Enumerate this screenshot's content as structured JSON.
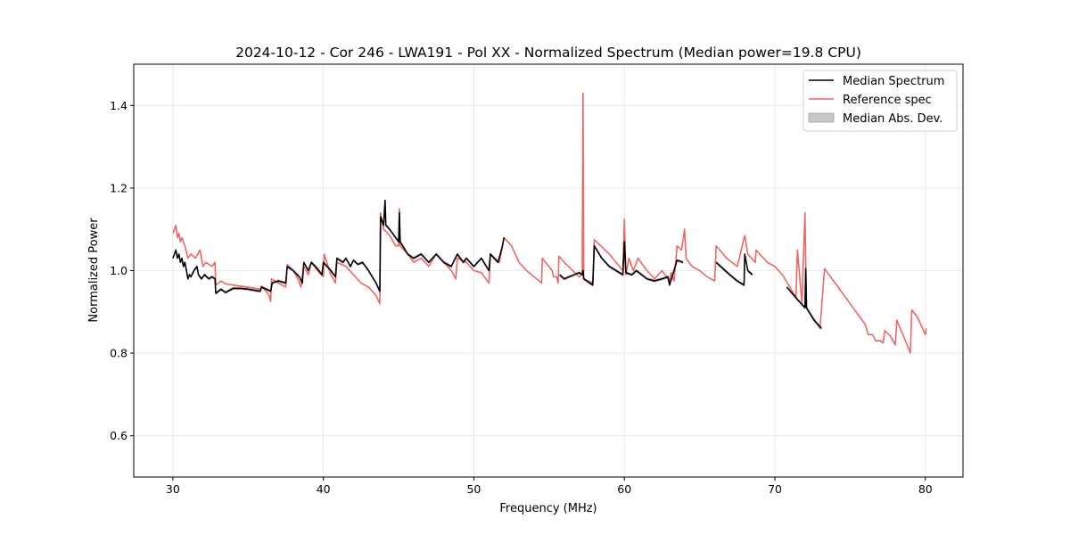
{
  "chart_data": {
    "type": "line",
    "title": "2024-10-12 - Cor 246 - LWA191 - Pol XX - Normalized Spectrum (Median power=19.8 CPU)",
    "xlabel": "Frequency (MHz)",
    "ylabel": "Normalized Power",
    "xlim": [
      27.4,
      82.5
    ],
    "ylim": [
      0.5,
      1.5
    ],
    "xticks": [
      30,
      40,
      50,
      60,
      70,
      80
    ],
    "yticks": [
      0.6,
      0.8,
      1.0,
      1.2,
      1.4
    ],
    "grid": true,
    "legend_position": "top-right",
    "legend": [
      "Median Spectrum",
      "Reference spec",
      "Median Abs. Dev."
    ],
    "colors": {
      "median": "#000000",
      "reference": "#f36464",
      "mad_fill": "#c8c8c8",
      "mad_edge": "#a0a0a0",
      "grid": "#e6e6e6"
    },
    "series": [
      {
        "name": "Reference spec",
        "segments": [
          [
            [
              30.0,
              1.09
            ],
            [
              30.1,
              1.1
            ],
            [
              30.2,
              1.11
            ],
            [
              30.3,
              1.08
            ],
            [
              30.4,
              1.09
            ],
            [
              30.5,
              1.07
            ],
            [
              30.6,
              1.08
            ],
            [
              30.8,
              1.06
            ],
            [
              31.0,
              1.03
            ],
            [
              31.2,
              1.04
            ],
            [
              31.5,
              1.03
            ],
            [
              31.8,
              1.05
            ],
            [
              32.0,
              1.01
            ],
            [
              32.2,
              1.02
            ],
            [
              32.6,
              1.01
            ],
            [
              32.8,
              1.02
            ],
            [
              32.85,
              0.965
            ],
            [
              33.2,
              0.975
            ],
            [
              33.5,
              0.968
            ],
            [
              34.0,
              0.965
            ],
            [
              35.0,
              0.96
            ],
            [
              35.8,
              0.955
            ],
            [
              35.9,
              0.963
            ],
            [
              36.4,
              0.94
            ],
            [
              36.5,
              0.925
            ],
            [
              36.55,
              0.98
            ],
            [
              37.0,
              0.97
            ],
            [
              37.5,
              0.96
            ],
            [
              37.6,
              1.015
            ],
            [
              38.0,
              1.0
            ],
            [
              38.3,
              0.98
            ],
            [
              38.5,
              0.96
            ],
            [
              38.7,
              1.01
            ],
            [
              39.0,
              0.99
            ],
            [
              39.2,
              1.02
            ],
            [
              39.6,
              1.0
            ],
            [
              40.0,
              0.985
            ],
            [
              40.05,
              1.04
            ],
            [
              40.5,
              0.99
            ],
            [
              40.8,
              0.97
            ],
            [
              40.9,
              1.02
            ],
            [
              41.5,
              1.01
            ],
            [
              42.0,
              0.99
            ],
            [
              42.5,
              0.97
            ],
            [
              43.0,
              0.96
            ],
            [
              43.5,
              0.94
            ],
            [
              43.75,
              0.92
            ],
            [
              43.8,
              1.14
            ],
            [
              44.0,
              1.1
            ],
            [
              44.3,
              1.09
            ],
            [
              44.5,
              1.08
            ],
            [
              44.8,
              1.06
            ],
            [
              45.0,
              1.06
            ],
            [
              45.05,
              1.15
            ],
            [
              45.1,
              1.06
            ],
            [
              45.6,
              1.04
            ],
            [
              46.0,
              1.02
            ],
            [
              46.5,
              1.03
            ],
            [
              47.0,
              1.01
            ],
            [
              47.5,
              1.04
            ],
            [
              48.0,
              1.02
            ],
            [
              48.5,
              1.0
            ],
            [
              48.8,
              0.98
            ],
            [
              48.9,
              1.03
            ],
            [
              49.5,
              1.02
            ],
            [
              50.0,
              1.0
            ],
            [
              50.5,
              0.995
            ],
            [
              51.0,
              0.97
            ],
            [
              51.1,
              1.04
            ],
            [
              51.7,
              1.02
            ],
            [
              51.9,
              1.06
            ],
            [
              52.0,
              1.08
            ],
            [
              52.5,
              1.06
            ],
            [
              53.0,
              1.02
            ],
            [
              53.5,
              1.0
            ],
            [
              54.0,
              0.985
            ],
            [
              54.5,
              0.97
            ],
            [
              54.55,
              1.03
            ],
            [
              55.2,
              1.0
            ],
            [
              55.3,
              0.985
            ],
            [
              55.5,
              0.985
            ],
            [
              55.6,
              0.97
            ],
            [
              55.65,
              1.035
            ],
            [
              56.0,
              1.02
            ],
            [
              57.0,
              0.985
            ],
            [
              57.2,
              0.99
            ],
            [
              57.25,
              1.43
            ],
            [
              57.3,
              0.98
            ],
            [
              57.9,
              0.97
            ],
            [
              58.0,
              1.075
            ],
            [
              59.0,
              1.04
            ],
            [
              59.9,
              1.0
            ],
            [
              60.0,
              1.125
            ],
            [
              60.1,
              0.99
            ],
            [
              60.3,
              1.03
            ],
            [
              60.6,
              1.0
            ],
            [
              60.9,
              1.03
            ],
            [
              61.5,
              1.0
            ],
            [
              62.0,
              0.98
            ],
            [
              62.5,
              1.0
            ],
            [
              63.0,
              0.975
            ],
            [
              63.1,
              0.995
            ],
            [
              63.3,
              0.975
            ],
            [
              63.5,
              1.06
            ],
            [
              63.8,
              1.05
            ],
            [
              64.0,
              1.1
            ],
            [
              64.1,
              1.03
            ],
            [
              64.5,
              1.01
            ],
            [
              65.0,
              1.0
            ],
            [
              65.5,
              0.985
            ],
            [
              66.0,
              0.975
            ],
            [
              66.1,
              1.06
            ],
            [
              66.8,
              1.03
            ],
            [
              67.5,
              1.01
            ],
            [
              68.0,
              1.085
            ],
            [
              68.2,
              1.04
            ],
            [
              68.7,
              1.02
            ],
            [
              68.75,
              1.05
            ],
            [
              69.0,
              1.04
            ],
            [
              69.5,
              1.02
            ],
            [
              70.0,
              1.01
            ],
            [
              70.5,
              0.99
            ],
            [
              71.0,
              0.96
            ],
            [
              71.4,
              0.935
            ],
            [
              71.5,
              1.05
            ],
            [
              71.8,
              0.92
            ],
            [
              72.0,
              1.14
            ],
            [
              72.1,
              0.91
            ],
            [
              73.0,
              0.86
            ],
            [
              73.3,
              1.005
            ],
            [
              74.0,
              0.97
            ],
            [
              75.0,
              0.92
            ],
            [
              75.5,
              0.895
            ],
            [
              76.0,
              0.87
            ],
            [
              76.2,
              0.845
            ],
            [
              76.5,
              0.845
            ],
            [
              76.7,
              0.83
            ],
            [
              77.0,
              0.83
            ],
            [
              77.2,
              0.825
            ],
            [
              77.3,
              0.855
            ],
            [
              77.7,
              0.84
            ],
            [
              78.0,
              0.82
            ],
            [
              78.1,
              0.88
            ],
            [
              78.9,
              0.81
            ],
            [
              79.0,
              0.8
            ],
            [
              79.1,
              0.905
            ],
            [
              79.5,
              0.885
            ],
            [
              80.0,
              0.845
            ],
            [
              80.05,
              0.86
            ]
          ]
        ]
      },
      {
        "name": "Median Spectrum",
        "segments": [
          [
            [
              30.0,
              1.03
            ],
            [
              30.1,
              1.04
            ],
            [
              30.2,
              1.05
            ],
            [
              30.3,
              1.03
            ],
            [
              30.4,
              1.04
            ],
            [
              30.5,
              1.02
            ],
            [
              30.6,
              1.03
            ],
            [
              30.7,
              1.01
            ],
            [
              30.8,
              1.02
            ],
            [
              30.9,
              1.0
            ],
            [
              31.0,
              0.98
            ],
            [
              31.1,
              0.99
            ],
            [
              31.2,
              0.985
            ],
            [
              31.4,
              1.0
            ],
            [
              31.6,
              1.01
            ],
            [
              31.7,
              0.99
            ],
            [
              31.9,
              0.98
            ],
            [
              32.1,
              0.99
            ],
            [
              32.4,
              0.98
            ],
            [
              32.6,
              0.985
            ],
            [
              32.8,
              0.98
            ],
            [
              32.85,
              0.945
            ],
            [
              33.2,
              0.955
            ],
            [
              33.5,
              0.947
            ],
            [
              34.0,
              0.957
            ],
            [
              34.5,
              0.957
            ],
            [
              35.0,
              0.955
            ],
            [
              35.8,
              0.95
            ],
            [
              35.9,
              0.96
            ],
            [
              36.5,
              0.95
            ],
            [
              36.6,
              0.97
            ],
            [
              37.0,
              0.975
            ],
            [
              37.5,
              0.97
            ],
            [
              37.6,
              1.01
            ],
            [
              38.0,
              1.0
            ],
            [
              38.4,
              0.985
            ],
            [
              38.6,
              0.97
            ],
            [
              38.7,
              1.02
            ],
            [
              39.0,
              1.0
            ],
            [
              39.2,
              1.02
            ],
            [
              39.6,
              1.005
            ],
            [
              39.9,
              0.99
            ],
            [
              40.0,
              1.02
            ],
            [
              40.5,
              1.0
            ],
            [
              40.8,
              0.985
            ],
            [
              40.9,
              1.03
            ],
            [
              41.3,
              1.02
            ],
            [
              41.5,
              1.03
            ],
            [
              41.8,
              1.01
            ],
            [
              42.0,
              1.025
            ],
            [
              42.3,
              1.015
            ],
            [
              42.6,
              1.02
            ],
            [
              42.8,
              1.01
            ],
            [
              43.0,
              1.0
            ],
            [
              43.5,
              0.97
            ],
            [
              43.75,
              0.95
            ],
            [
              43.8,
              1.13
            ],
            [
              44.0,
              1.11
            ],
            [
              44.1,
              1.17
            ],
            [
              44.15,
              1.11
            ],
            [
              44.4,
              1.1
            ],
            [
              45.0,
              1.07
            ],
            [
              45.05,
              1.14
            ],
            [
              45.1,
              1.07
            ],
            [
              45.6,
              1.04
            ],
            [
              46.0,
              1.03
            ],
            [
              46.5,
              1.04
            ],
            [
              47.0,
              1.02
            ],
            [
              47.5,
              1.04
            ],
            [
              48.0,
              1.02
            ],
            [
              48.5,
              1.01
            ],
            [
              48.9,
              1.04
            ],
            [
              49.3,
              1.02
            ],
            [
              49.5,
              1.03
            ],
            [
              50.0,
              1.01
            ],
            [
              50.5,
              1.03
            ],
            [
              51.0,
              1.0
            ],
            [
              51.1,
              1.04
            ],
            [
              51.6,
              1.02
            ],
            [
              51.9,
              1.06
            ],
            [
              52.0,
              1.08
            ]
          ],
          [
            [
              55.7,
              0.99
            ],
            [
              56.0,
              0.98
            ],
            [
              57.0,
              0.995
            ],
            [
              57.2,
              0.99
            ],
            [
              57.25,
              1.0
            ],
            [
              57.3,
              0.98
            ],
            [
              57.9,
              0.965
            ],
            [
              58.0,
              1.06
            ],
            [
              58.5,
              1.03
            ],
            [
              59.0,
              1.01
            ],
            [
              59.9,
              0.99
            ],
            [
              60.0,
              1.07
            ],
            [
              60.1,
              0.995
            ],
            [
              60.5,
              0.99
            ],
            [
              60.8,
              1.0
            ],
            [
              61.5,
              0.98
            ],
            [
              62.0,
              0.975
            ],
            [
              62.5,
              0.98
            ],
            [
              62.9,
              0.985
            ],
            [
              63.0,
              0.965
            ],
            [
              63.5,
              1.025
            ],
            [
              63.9,
              1.02
            ]
          ],
          [
            [
              66.1,
              1.02
            ],
            [
              67.0,
              0.99
            ],
            [
              67.5,
              0.975
            ],
            [
              67.95,
              0.965
            ],
            [
              68.0,
              1.04
            ],
            [
              68.2,
              1.0
            ],
            [
              68.5,
              0.99
            ]
          ],
          [
            [
              70.8,
              0.96
            ],
            [
              71.5,
              0.93
            ],
            [
              72.0,
              0.91
            ],
            [
              72.05,
              1.005
            ],
            [
              72.1,
              0.91
            ],
            [
              72.6,
              0.88
            ],
            [
              73.1,
              0.86
            ]
          ]
        ]
      }
    ]
  }
}
